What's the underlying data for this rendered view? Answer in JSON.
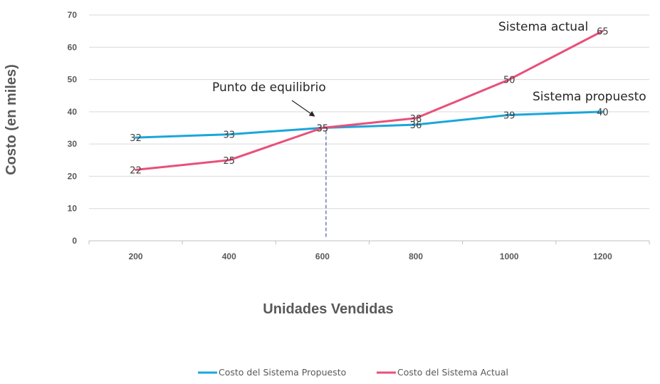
{
  "chart_data": {
    "type": "line",
    "title": "",
    "xlabel": "Unidades Vendidas",
    "ylabel": "Costo (en miles)",
    "categories": [
      "200",
      "400",
      "600",
      "800",
      "1000",
      "1200"
    ],
    "ylim": [
      0,
      70
    ],
    "yticks": [
      "0",
      "10",
      "20",
      "30",
      "40",
      "50",
      "60",
      "70"
    ],
    "grid": true,
    "legend_position": "bottom",
    "series": [
      {
        "name": "Costo del Sistema Propuesto",
        "color": "#1BA6D9",
        "values": [
          32,
          33,
          35,
          36,
          39,
          40
        ],
        "labels": [
          "32",
          "33",
          "35",
          "36",
          "39",
          "40"
        ]
      },
      {
        "name": "Costo del Sistema Actual",
        "color": "#E8507A",
        "values": [
          22,
          25,
          35,
          38,
          50,
          65
        ],
        "labels": [
          "22",
          "25",
          "35",
          "38",
          "50",
          "65"
        ]
      }
    ],
    "annotations": {
      "equilibrium": "Punto de equilibrio",
      "current": "Sistema actual",
      "proposed": "Sistema propuesto"
    }
  }
}
